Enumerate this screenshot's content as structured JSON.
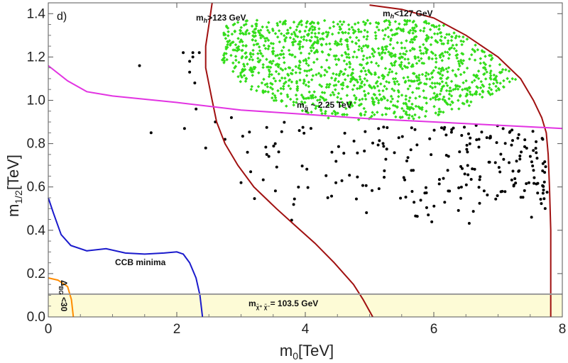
{
  "chart_data": {
    "type": "scatter",
    "panel_label": "d)",
    "xlabel": "m0[TeV]",
    "ylabel": "m1/2[TeV]",
    "xlim": [
      0,
      8
    ],
    "ylim": [
      0,
      1.45
    ],
    "x_ticks": [
      "0",
      "2",
      "4",
      "6",
      "8"
    ],
    "y_ticks": [
      "0.0",
      "0.2",
      "0.4",
      "0.6",
      "0.8",
      "1.0",
      "1.2",
      "1.4"
    ],
    "annotations": {
      "mh_low": "mh>123 GeV",
      "mh_high": "mh<127 GeV",
      "gluino": "mg̃ ~ 2.25 TeV",
      "ccb": "CCB minima",
      "chargino": "mχ̃⁺χ̃⁻= 103.5 GeV",
      "delta_bg": "ΔBG <30"
    },
    "colors": {
      "green_points": "#33dd1a",
      "black_points": "#000000",
      "mh_contours": "#a01010",
      "gluino_line": "#e233e2",
      "ccb_line": "#1a1acc",
      "delta_line": "#ff8c00",
      "excluded_band": "#fdfbd6",
      "chargino_line": "#999999"
    },
    "series": [
      {
        "name": "mh>123 GeV contour",
        "points": [
          [
            2.55,
            1.45
          ],
          [
            2.5,
            1.35
          ],
          [
            2.45,
            1.25
          ],
          [
            2.45,
            1.15
          ],
          [
            2.55,
            1.0
          ],
          [
            2.62,
            0.9
          ],
          [
            2.75,
            0.8
          ],
          [
            2.95,
            0.7
          ],
          [
            3.2,
            0.6
          ],
          [
            3.55,
            0.5
          ],
          [
            3.85,
            0.42
          ],
          [
            4.15,
            0.34
          ],
          [
            4.45,
            0.25
          ],
          [
            4.75,
            0.15
          ],
          [
            4.9,
            0.08
          ],
          [
            5.05,
            0.0
          ]
        ]
      },
      {
        "name": "mh<127 GeV contour",
        "points": [
          [
            5.0,
            1.44
          ],
          [
            5.5,
            1.42
          ],
          [
            6.0,
            1.38
          ],
          [
            6.5,
            1.3
          ],
          [
            7.0,
            1.2
          ],
          [
            7.35,
            1.1
          ],
          [
            7.55,
            1.0
          ],
          [
            7.68,
            0.92
          ],
          [
            7.75,
            0.85
          ],
          [
            7.78,
            0.75
          ],
          [
            7.8,
            0.6
          ],
          [
            7.82,
            0.4
          ],
          [
            7.82,
            0.2
          ],
          [
            7.82,
            0.0
          ]
        ]
      },
      {
        "name": "mg ~ 2.25 TeV",
        "points": [
          [
            0,
            1.16
          ],
          [
            0.3,
            1.09
          ],
          [
            0.6,
            1.04
          ],
          [
            1.0,
            1.02
          ],
          [
            2.0,
            0.99
          ],
          [
            3.0,
            0.955
          ],
          [
            4.0,
            0.935
          ],
          [
            5.0,
            0.915
          ],
          [
            6.0,
            0.9
          ],
          [
            7.0,
            0.885
          ],
          [
            8.0,
            0.87
          ]
        ]
      },
      {
        "name": "CCB minima",
        "points": [
          [
            0,
            0.55
          ],
          [
            0.08,
            0.48
          ],
          [
            0.2,
            0.38
          ],
          [
            0.35,
            0.33
          ],
          [
            0.6,
            0.305
          ],
          [
            0.9,
            0.315
          ],
          [
            1.2,
            0.295
          ],
          [
            1.5,
            0.29
          ],
          [
            1.8,
            0.295
          ],
          [
            2.0,
            0.3
          ],
          [
            2.1,
            0.29
          ],
          [
            2.2,
            0.25
          ],
          [
            2.3,
            0.18
          ],
          [
            2.36,
            0.1
          ],
          [
            2.4,
            0.0
          ]
        ]
      },
      {
        "name": "Delta_BG < 30",
        "points": [
          [
            0,
            0.18
          ],
          [
            0.15,
            0.17
          ],
          [
            0.3,
            0.14
          ],
          [
            0.36,
            0.08
          ],
          [
            0.39,
            0.0
          ]
        ]
      },
      {
        "name": "chargino limit",
        "points": [
          [
            0,
            0.105
          ],
          [
            8,
            0.105
          ]
        ]
      }
    ]
  }
}
